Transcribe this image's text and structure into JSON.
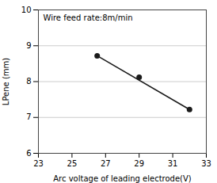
{
  "chart_data": {
    "type": "scatter",
    "xlabel": "Arc voltage of leading electrode(V)",
    "ylabel": "LPene (mm)",
    "annotation": "Wire feed rate:8m/min",
    "series": [
      {
        "type": "line",
        "x": [
          26.5,
          32.0
        ],
        "values": [
          8.72,
          7.22
        ],
        "color": "#1a1a1a"
      },
      {
        "type": "scatter",
        "x": [
          26.5,
          29.0,
          32.0
        ],
        "values": [
          8.72,
          8.12,
          7.22
        ],
        "color": "#1a1a1a"
      }
    ],
    "xlim": [
      23,
      33
    ],
    "ylim": [
      6,
      10
    ],
    "xticks": [
      23,
      25,
      27,
      29,
      31,
      33
    ],
    "yticks": [
      6,
      7,
      8,
      9,
      10
    ],
    "grid": "y"
  }
}
